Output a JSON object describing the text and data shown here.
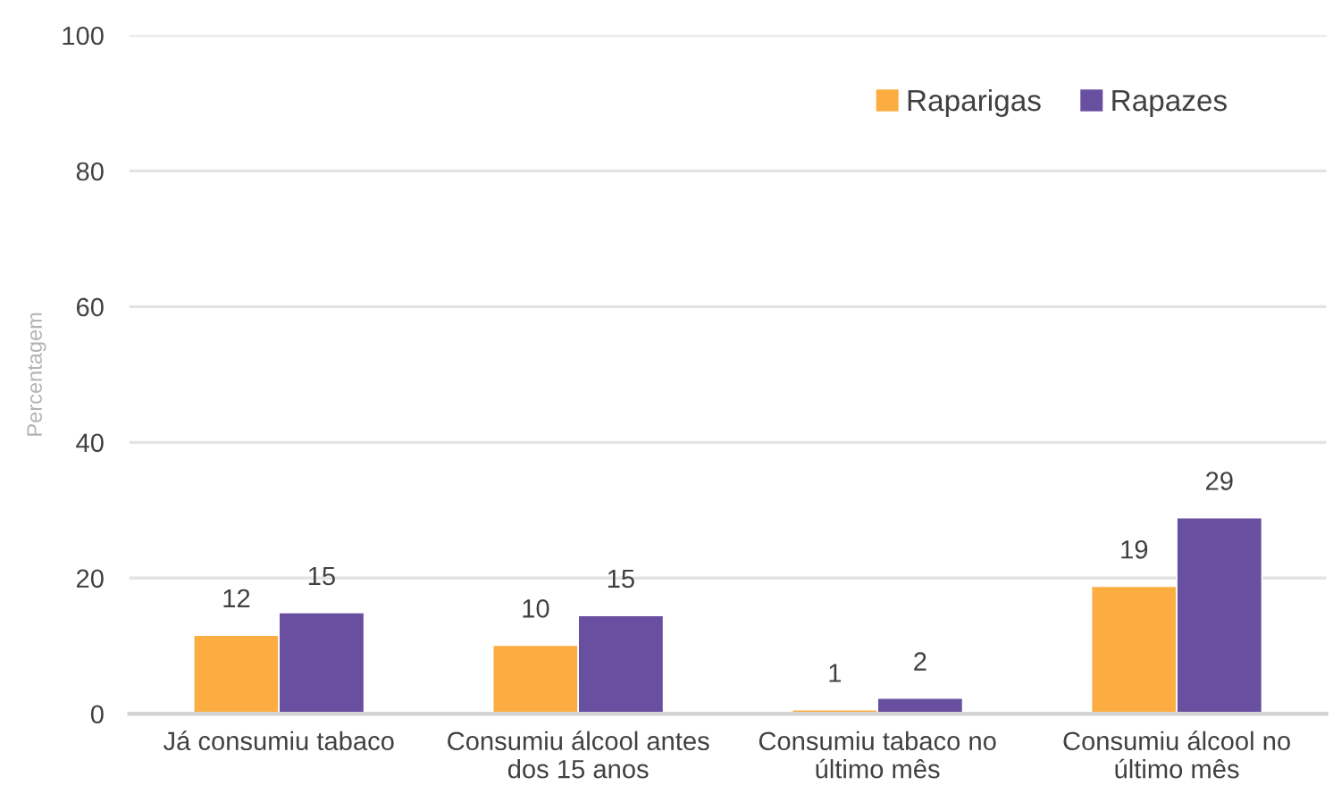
{
  "chart_data": {
    "type": "bar",
    "ylabel": "Percentagem",
    "categories": [
      "Já consumiu tabaco",
      "Consumiu álcool antes\ndos 15 anos",
      "Consumiu tabaco no\núltimo mês",
      "Consumiu álcool no\núltimo mês"
    ],
    "series": [
      {
        "name": "Raparigas",
        "color": "#fbad41",
        "values": [
          11.6,
          10.1,
          0.6,
          18.8
        ],
        "value_labels": [
          "12",
          "10",
          "1",
          "19"
        ]
      },
      {
        "name": "Rapazes",
        "color": "#684fa0",
        "values": [
          14.9,
          14.5,
          2.3,
          28.9
        ],
        "value_labels": [
          "15",
          "15",
          "2",
          "29"
        ]
      }
    ],
    "ylim": [
      0,
      100
    ],
    "yticks": [
      0,
      20,
      40,
      60,
      80,
      100
    ],
    "grid": "y",
    "legend": "top right"
  }
}
